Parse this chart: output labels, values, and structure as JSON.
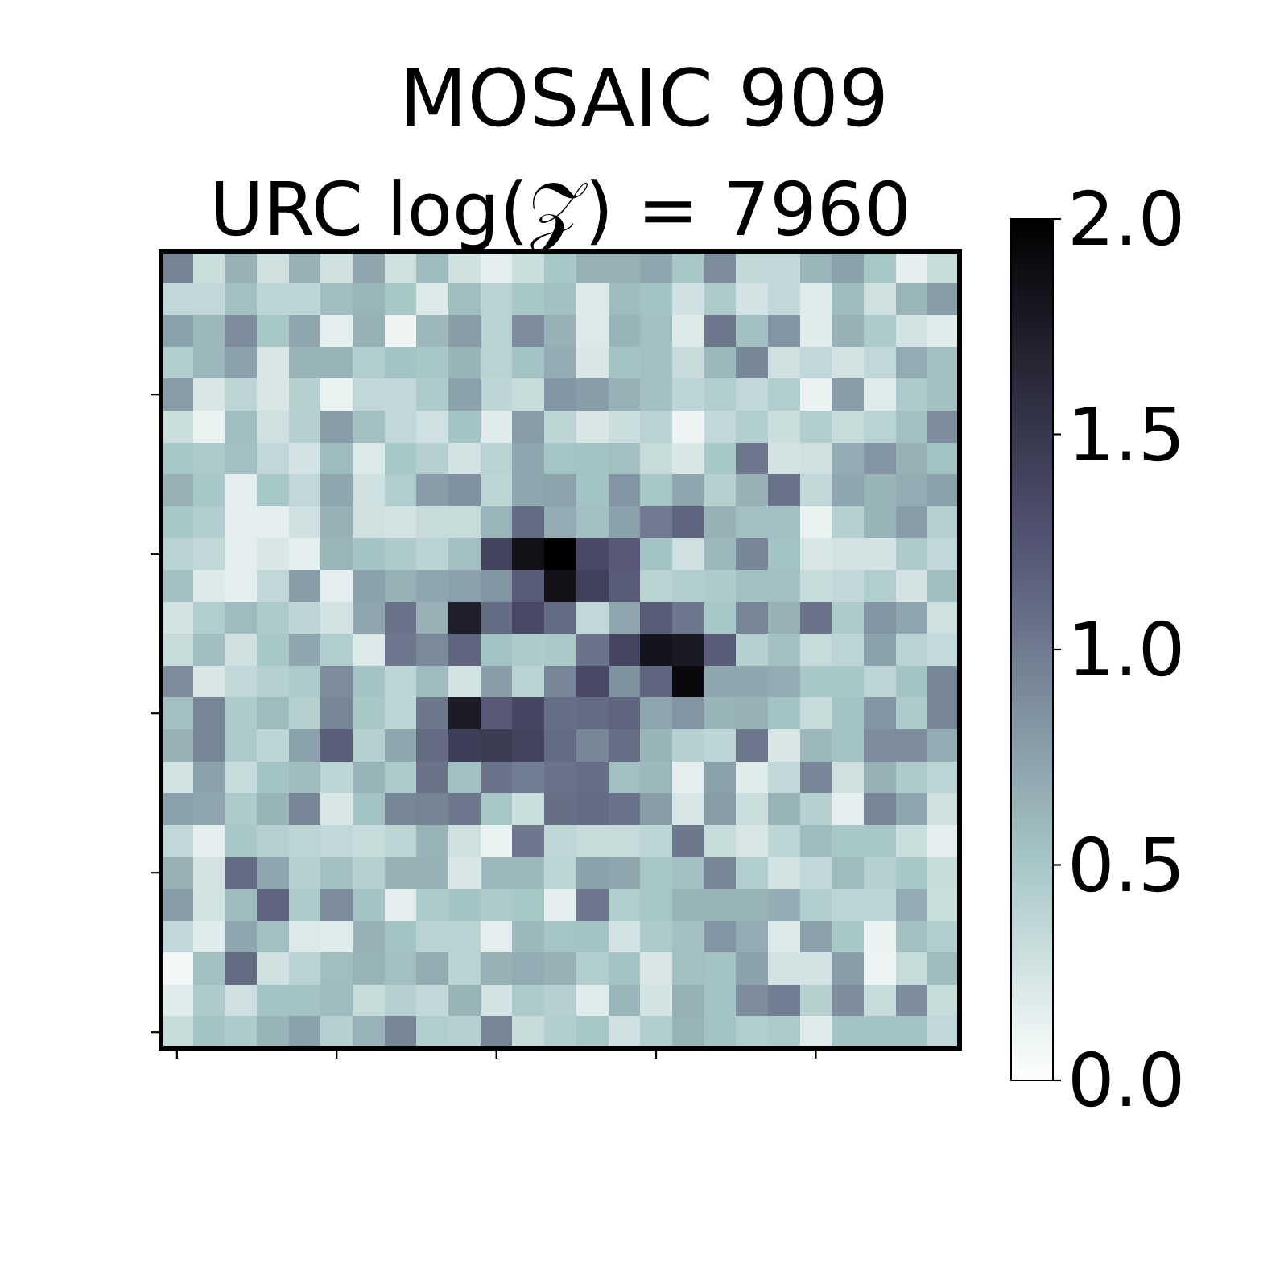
{
  "chart_data": {
    "type": "heatmap",
    "title": "MOSAIC 909",
    "subtitle": "URC log(𝒵) = 7960",
    "categories": [
      null,
      null,
      null,
      null,
      null,
      null,
      null,
      null,
      null,
      null,
      null,
      null,
      null,
      null,
      null,
      null,
      null,
      null,
      null,
      null,
      null,
      null,
      null,
      null,
      null
    ],
    "y_categories": [
      null,
      null,
      null,
      null,
      null,
      null,
      null,
      null,
      null,
      null,
      null,
      null,
      null,
      null,
      null,
      null,
      null,
      null,
      null,
      null,
      null,
      null,
      null,
      null,
      null
    ],
    "cells": [
      [
        0.95,
        0.3,
        0.65,
        0.28,
        0.65,
        0.28,
        0.72,
        0.28,
        0.58,
        0.27,
        0.15,
        0.3,
        0.5,
        0.65,
        0.65,
        0.72,
        0.5,
        0.88,
        0.35,
        0.35,
        0.62,
        0.75,
        0.5,
        0.15,
        0.32
      ],
      [
        0.35,
        0.35,
        0.55,
        0.38,
        0.38,
        0.57,
        0.62,
        0.5,
        0.2,
        0.57,
        0.4,
        0.5,
        0.55,
        0.2,
        0.58,
        0.53,
        0.27,
        0.47,
        0.25,
        0.35,
        0.18,
        0.58,
        0.27,
        0.62,
        0.78
      ],
      [
        0.75,
        0.6,
        0.88,
        0.5,
        0.72,
        0.15,
        0.65,
        0.1,
        0.6,
        0.78,
        0.4,
        0.88,
        0.65,
        0.2,
        0.63,
        0.55,
        0.2,
        1.02,
        0.55,
        0.83,
        0.18,
        0.65,
        0.47,
        0.25,
        0.18
      ],
      [
        0.45,
        0.6,
        0.75,
        0.22,
        0.63,
        0.63,
        0.45,
        0.53,
        0.5,
        0.63,
        0.4,
        0.53,
        0.68,
        0.22,
        0.53,
        0.55,
        0.32,
        0.6,
        0.92,
        0.28,
        0.35,
        0.25,
        0.35,
        0.68,
        0.55
      ],
      [
        0.78,
        0.22,
        0.38,
        0.22,
        0.42,
        0.12,
        0.35,
        0.35,
        0.47,
        0.75,
        0.38,
        0.32,
        0.82,
        0.78,
        0.65,
        0.55,
        0.38,
        0.45,
        0.35,
        0.45,
        0.12,
        0.78,
        0.18,
        0.47,
        0.55
      ],
      [
        0.3,
        0.12,
        0.57,
        0.28,
        0.42,
        0.78,
        0.55,
        0.35,
        0.28,
        0.53,
        0.18,
        0.78,
        0.38,
        0.22,
        0.3,
        0.4,
        0.1,
        0.35,
        0.45,
        0.3,
        0.45,
        0.32,
        0.4,
        0.55,
        0.88
      ],
      [
        0.5,
        0.47,
        0.55,
        0.35,
        0.25,
        0.58,
        0.2,
        0.5,
        0.42,
        0.25,
        0.4,
        0.72,
        0.52,
        0.53,
        0.55,
        0.32,
        0.22,
        0.5,
        1.02,
        0.25,
        0.28,
        0.68,
        0.83,
        0.65,
        0.53
      ],
      [
        0.65,
        0.5,
        0.15,
        0.5,
        0.35,
        0.72,
        0.27,
        0.45,
        0.78,
        0.85,
        0.38,
        0.72,
        0.74,
        0.53,
        0.83,
        0.5,
        0.72,
        0.42,
        0.65,
        1.05,
        0.35,
        0.72,
        0.63,
        0.68,
        0.75
      ],
      [
        0.5,
        0.45,
        0.15,
        0.15,
        0.28,
        0.65,
        0.28,
        0.25,
        0.32,
        0.32,
        0.62,
        1.1,
        0.68,
        0.55,
        0.75,
        1.0,
        1.15,
        0.65,
        0.55,
        0.55,
        0.12,
        0.42,
        0.63,
        0.78,
        0.42
      ],
      [
        0.4,
        0.35,
        0.15,
        0.22,
        0.15,
        0.62,
        0.53,
        0.47,
        0.4,
        0.55,
        1.4,
        1.85,
        2.0,
        1.35,
        1.22,
        0.53,
        0.28,
        0.6,
        0.92,
        0.53,
        0.22,
        0.25,
        0.25,
        0.47,
        0.35
      ],
      [
        0.55,
        0.2,
        0.15,
        0.35,
        0.78,
        0.15,
        0.75,
        0.65,
        0.72,
        0.75,
        0.83,
        1.2,
        1.85,
        1.42,
        1.2,
        0.4,
        0.45,
        0.47,
        0.55,
        0.55,
        0.32,
        0.35,
        0.45,
        0.25,
        0.57
      ],
      [
        0.25,
        0.45,
        0.58,
        0.47,
        0.38,
        0.25,
        0.72,
        1.05,
        0.65,
        1.72,
        1.1,
        1.35,
        1.1,
        0.35,
        0.72,
        1.2,
        1.02,
        0.5,
        0.93,
        0.65,
        1.05,
        0.47,
        0.82,
        0.72,
        0.28
      ],
      [
        0.32,
        0.57,
        0.28,
        0.5,
        0.72,
        0.45,
        0.2,
        1.02,
        0.9,
        1.15,
        0.53,
        0.47,
        0.48,
        1.05,
        1.38,
        1.82,
        1.78,
        1.2,
        0.42,
        0.55,
        0.32,
        0.38,
        0.75,
        0.4,
        0.33
      ],
      [
        0.88,
        0.22,
        0.35,
        0.42,
        0.47,
        0.88,
        0.53,
        0.38,
        0.58,
        0.25,
        0.78,
        0.4,
        0.92,
        1.35,
        0.85,
        1.15,
        1.92,
        0.72,
        0.72,
        0.68,
        0.5,
        0.5,
        0.38,
        0.53,
        0.92
      ],
      [
        0.55,
        0.92,
        0.47,
        0.58,
        0.42,
        0.92,
        0.5,
        0.38,
        1.02,
        1.75,
        1.22,
        1.37,
        1.08,
        1.1,
        1.15,
        0.72,
        0.83,
        0.63,
        0.65,
        0.53,
        0.32,
        0.53,
        0.83,
        0.47,
        0.92
      ],
      [
        0.65,
        0.92,
        0.47,
        0.38,
        0.75,
        1.18,
        0.42,
        0.72,
        1.1,
        1.45,
        1.47,
        1.4,
        1.1,
        0.92,
        1.08,
        0.63,
        0.42,
        0.38,
        1.02,
        0.22,
        0.6,
        0.53,
        0.88,
        0.88,
        0.68
      ],
      [
        0.25,
        0.75,
        0.32,
        0.53,
        0.58,
        0.38,
        0.63,
        0.47,
        1.05,
        0.55,
        1.05,
        0.98,
        1.05,
        1.08,
        0.55,
        0.6,
        0.15,
        0.75,
        0.18,
        0.35,
        0.92,
        0.28,
        0.65,
        0.47,
        0.38
      ],
      [
        0.75,
        0.72,
        0.47,
        0.63,
        0.92,
        0.22,
        0.53,
        0.92,
        0.95,
        1.02,
        0.5,
        0.3,
        1.08,
        1.1,
        1.05,
        0.78,
        0.22,
        0.78,
        0.3,
        0.63,
        0.42,
        0.15,
        0.92,
        0.72,
        0.28
      ],
      [
        0.35,
        0.15,
        0.5,
        0.42,
        0.38,
        0.35,
        0.32,
        0.38,
        0.63,
        0.28,
        0.12,
        1.02,
        0.37,
        0.32,
        0.32,
        0.38,
        1.02,
        0.32,
        0.22,
        0.38,
        0.58,
        0.5,
        0.5,
        0.3,
        0.15
      ],
      [
        0.65,
        0.25,
        1.1,
        0.72,
        0.42,
        0.55,
        0.42,
        0.65,
        0.65,
        0.22,
        0.6,
        0.6,
        0.38,
        0.75,
        0.72,
        0.5,
        0.55,
        0.92,
        0.45,
        0.25,
        0.35,
        0.58,
        0.42,
        0.5,
        0.32
      ],
      [
        0.78,
        0.25,
        0.58,
        1.15,
        0.47,
        0.88,
        0.53,
        0.15,
        0.47,
        0.53,
        0.47,
        0.5,
        0.15,
        1.02,
        0.45,
        0.5,
        0.63,
        0.63,
        0.63,
        0.67,
        0.45,
        0.38,
        0.38,
        0.68,
        0.3
      ],
      [
        0.35,
        0.18,
        0.72,
        0.55,
        0.2,
        0.18,
        0.65,
        0.53,
        0.4,
        0.4,
        0.15,
        0.6,
        0.52,
        0.53,
        0.25,
        0.47,
        0.55,
        0.83,
        0.68,
        0.2,
        0.75,
        0.5,
        0.12,
        0.55,
        0.45
      ],
      [
        0.07,
        0.55,
        1.1,
        0.28,
        0.4,
        0.57,
        0.63,
        0.55,
        0.68,
        0.4,
        0.65,
        0.68,
        0.65,
        0.45,
        0.53,
        0.22,
        0.55,
        0.53,
        0.75,
        0.25,
        0.25,
        0.78,
        0.1,
        0.32,
        0.58
      ],
      [
        0.18,
        0.47,
        0.28,
        0.53,
        0.53,
        0.58,
        0.32,
        0.42,
        0.35,
        0.63,
        0.25,
        0.47,
        0.42,
        0.18,
        0.62,
        0.25,
        0.65,
        0.53,
        0.88,
        0.98,
        0.42,
        0.88,
        0.32,
        0.88,
        0.32
      ],
      [
        0.32,
        0.53,
        0.47,
        0.63,
        0.75,
        0.42,
        0.63,
        0.92,
        0.45,
        0.42,
        0.92,
        0.32,
        0.45,
        0.5,
        0.28,
        0.45,
        0.63,
        0.53,
        0.45,
        0.47,
        0.18,
        0.53,
        0.53,
        0.53,
        0.35
      ]
    ],
    "clim": [
      0,
      2
    ],
    "cticks": [
      {
        "value": 0,
        "label": "0.0"
      },
      {
        "value": 0.5,
        "label": "0.5"
      },
      {
        "value": 1,
        "label": "1.0"
      },
      {
        "value": 1.5,
        "label": "1.5"
      },
      {
        "value": 2,
        "label": "2.0"
      }
    ],
    "tick_labels": false
  }
}
